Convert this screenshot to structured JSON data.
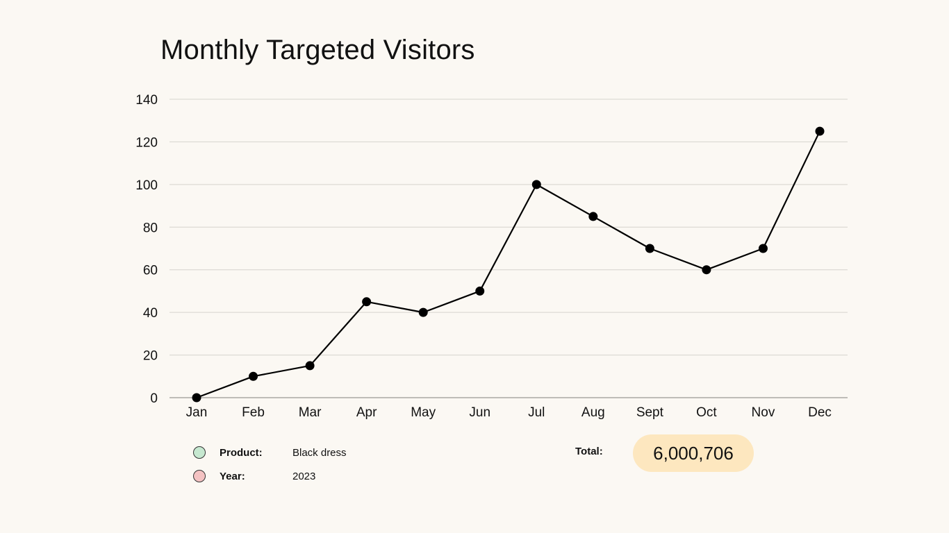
{
  "chart_data": {
    "type": "line",
    "title": "Monthly Targeted Visitors",
    "xlabel": "",
    "ylabel": "",
    "categories": [
      "Jan",
      "Feb",
      "Mar",
      "Apr",
      "May",
      "Jun",
      "Jul",
      "Aug",
      "Sept",
      "Oct",
      "Nov",
      "Dec"
    ],
    "values": [
      0,
      10,
      15,
      45,
      40,
      50,
      100,
      85,
      70,
      60,
      70,
      125
    ],
    "ylim": [
      0,
      140
    ],
    "yticks": [
      0,
      20,
      40,
      60,
      80,
      100,
      120,
      140
    ],
    "grid": true,
    "line_color": "#000000",
    "marker_color": "#000000",
    "grid_color": "#d6d3cd"
  },
  "legend": {
    "product_label": "Product:",
    "product_value": "Black dress",
    "product_color": "#c6e8d0",
    "year_label": "Year:",
    "year_value": "2023",
    "year_color": "#f4c2c2"
  },
  "total": {
    "label": "Total:",
    "value": "6,000,706",
    "pill_color": "#fde7bf"
  },
  "background_color": "#fbf8f3"
}
